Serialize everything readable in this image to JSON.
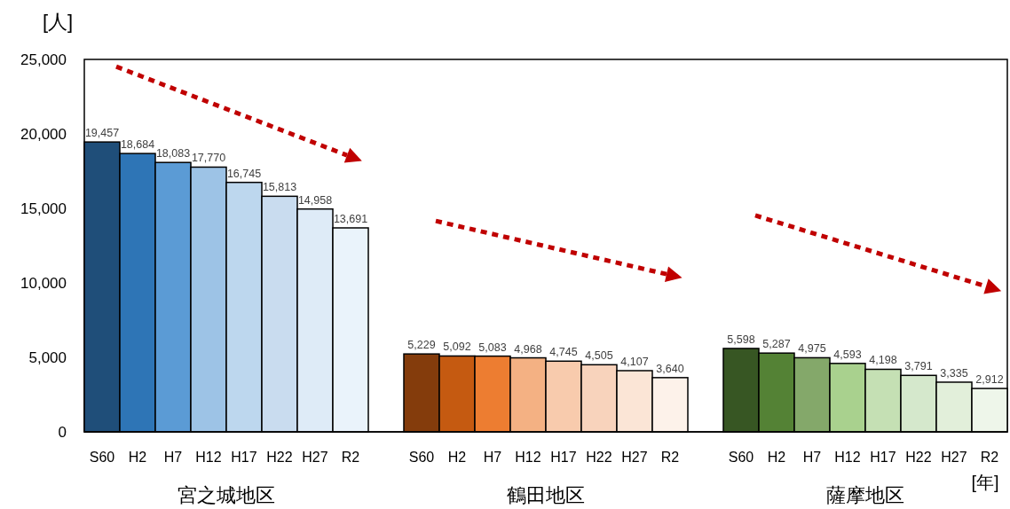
{
  "chart_data": {
    "type": "bar",
    "ylabel": "[人]",
    "xlabel": "[年]",
    "categories": [
      "S60",
      "H2",
      "H7",
      "H12",
      "H17",
      "H22",
      "H27",
      "R2",
      null,
      "S60",
      "H2",
      "H7",
      "H12",
      "H17",
      "H22",
      "H27",
      "R2",
      null,
      "S60",
      "H2",
      "H7",
      "H12",
      "H17",
      "H22",
      "H27",
      "R2"
    ],
    "values": [
      19457,
      18684,
      18083,
      17770,
      16745,
      15813,
      14958,
      13691,
      null,
      5229,
      5092,
      5083,
      4968,
      4745,
      4505,
      4107,
      3640,
      null,
      5598,
      5287,
      4975,
      4593,
      4198,
      3791,
      3335,
      2912
    ],
    "colors": [
      "#1f4e79",
      "#2e75b6",
      "#5b9bd5",
      "#9dc3e6",
      "#bdd7ee",
      "#c9dcef",
      "#deebf7",
      "#eaf3fb",
      null,
      "#843c0c",
      "#c55a11",
      "#ed7d31",
      "#f4b183",
      "#f8cbad",
      "#f8d3bc",
      "#fbe5d6",
      "#fdf2ea",
      null,
      "#375623",
      "#548235",
      "#84a86a",
      "#a9d18e",
      "#c5e0b4",
      "#d5e8cc",
      "#e2efda",
      "#eef6ea"
    ],
    "ylim": [
      0,
      25000
    ],
    "yticks": [
      {
        "value": 0,
        "label": "0"
      },
      {
        "value": 5000,
        "label": "5,000"
      },
      {
        "value": 10000,
        "label": "10,000"
      },
      {
        "value": 15000,
        "label": "15,000"
      },
      {
        "value": 20000,
        "label": "20,000"
      },
      {
        "value": 25000,
        "label": "25,000"
      }
    ],
    "value_labels": [
      "19,457",
      "18,684",
      "18,083",
      "17,770",
      "16,745",
      "15,813",
      "14,958",
      "13,691",
      null,
      "5,229",
      "5,092",
      "5,083",
      "4,968",
      "4,745",
      "4,505",
      "4,107",
      "3,640",
      null,
      "5,598",
      "5,287",
      "4,975",
      "4,593",
      "4,198",
      "3,791",
      "3,335",
      "2,912"
    ],
    "annotations": [
      "宮之城地区",
      "鶴田地区",
      "薩摩地区"
    ]
  }
}
